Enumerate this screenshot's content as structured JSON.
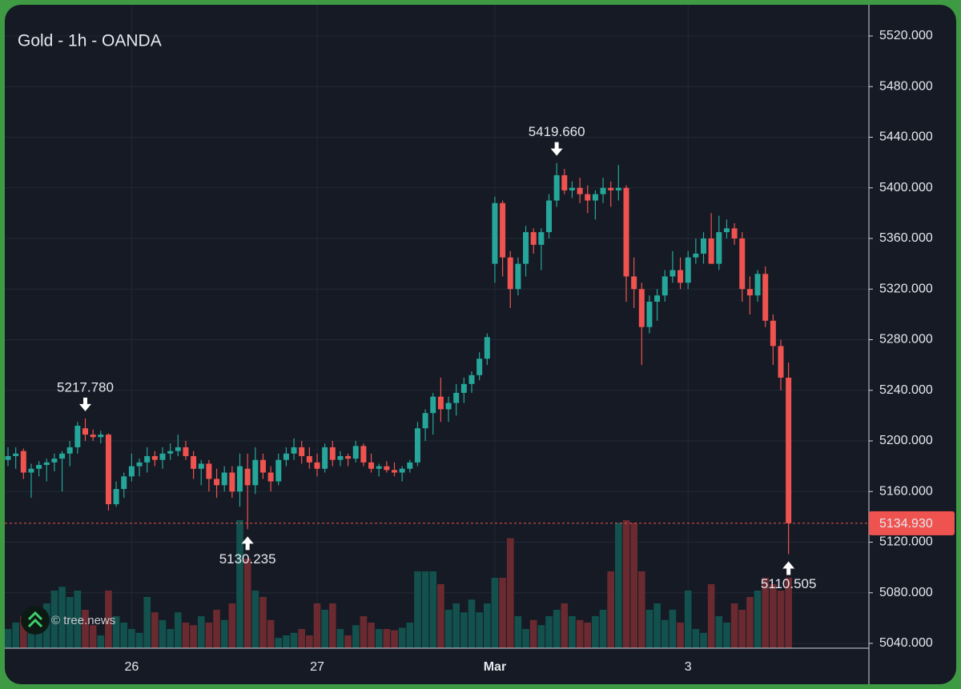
{
  "chart_data": {
    "type": "candlestick",
    "title": "Gold - 1h - OANDA",
    "up_color": "#26a69a",
    "down_color": "#ef5350",
    "volume_up_color": "#12514d",
    "volume_down_color": "#6a2a30",
    "grid": true,
    "ylim": [
      5040,
      5520
    ],
    "yticks": [
      {
        "value": 5040,
        "label": "5040.000"
      },
      {
        "value": 5080,
        "label": "5080.000"
      },
      {
        "value": 5120,
        "label": "5120.000"
      },
      {
        "value": 5160,
        "label": "5160.000"
      },
      {
        "value": 5200,
        "label": "5200.000"
      },
      {
        "value": 5240,
        "label": "5240.000"
      },
      {
        "value": 5280,
        "label": "5280.000"
      },
      {
        "value": 5320,
        "label": "5320.000"
      },
      {
        "value": 5360,
        "label": "5360.000"
      },
      {
        "value": 5400,
        "label": "5400.000"
      },
      {
        "value": 5440,
        "label": "5440.000"
      },
      {
        "value": 5480,
        "label": "5480.000"
      },
      {
        "value": 5520,
        "label": "5520.000"
      }
    ],
    "categories": [
      null,
      null,
      null,
      null,
      null,
      null,
      null,
      null,
      null,
      null,
      null,
      null,
      null,
      null,
      null,
      null,
      "26",
      null,
      null,
      null,
      null,
      null,
      null,
      null,
      null,
      null,
      null,
      null,
      null,
      null,
      null,
      null,
      null,
      null,
      null,
      null,
      null,
      null,
      null,
      null,
      "27",
      null,
      null,
      null,
      null,
      null,
      null,
      null,
      null,
      null,
      null,
      null,
      null,
      null,
      null,
      null,
      null,
      null,
      null,
      null,
      null,
      null,
      null,
      "Mar",
      null,
      null,
      null,
      null,
      null,
      null,
      null,
      null,
      null,
      null,
      null,
      null,
      null,
      null,
      null,
      null,
      null,
      null,
      null,
      null,
      null,
      null,
      null,
      null,
      "3",
      null,
      null,
      null,
      null,
      null,
      null,
      null,
      null,
      null,
      null,
      null,
      null,
      null
    ],
    "open": [
      5185,
      5188,
      5192,
      5175,
      5178,
      5181,
      5183,
      5186,
      5190,
      5195,
      5210,
      5205,
      5203,
      5205,
      5150,
      5162,
      5172,
      5180,
      5183,
      5188,
      5185,
      5190,
      5192,
      5195,
      5188,
      5178,
      5182,
      5170,
      5165,
      5175,
      5160,
      5178,
      5165,
      5185,
      5175,
      5168,
      5185,
      5190,
      5195,
      5188,
      5183,
      5178,
      5195,
      5185,
      5188,
      5186,
      5196,
      5183,
      5178,
      5180,
      5177,
      5175,
      5178,
      5183,
      5210,
      5222,
      5235,
      5225,
      5230,
      5238,
      5245,
      5252,
      5265,
      5340,
      5388,
      5345,
      5320,
      5340,
      5365,
      5355,
      5365,
      5390,
      5410,
      5398,
      5400,
      5395,
      5390,
      5395,
      5400,
      5398,
      5400,
      5330,
      5320,
      5290,
      5310,
      5315,
      5330,
      5335,
      5325,
      5345,
      5348,
      5360,
      5340,
      5365,
      5368,
      5360,
      5320,
      5315,
      5332,
      5295,
      5275,
      5250
    ],
    "high": [
      5195,
      5195,
      5194,
      5182,
      5184,
      5186,
      5190,
      5192,
      5200,
      5215,
      5217.78,
      5209,
      5208,
      5206,
      5168,
      5175,
      5190,
      5186,
      5195,
      5192,
      5195,
      5198,
      5205,
      5200,
      5192,
      5185,
      5185,
      5178,
      5180,
      5180,
      5190,
      5190,
      5195,
      5190,
      5180,
      5190,
      5195,
      5202,
      5200,
      5195,
      5190,
      5198,
      5200,
      5192,
      5190,
      5200,
      5198,
      5190,
      5182,
      5184,
      5183,
      5180,
      5185,
      5215,
      5225,
      5238,
      5250,
      5235,
      5245,
      5250,
      5255,
      5270,
      5285,
      5393,
      5390,
      5350,
      5345,
      5370,
      5368,
      5368,
      5395,
      5419.66,
      5415,
      5405,
      5408,
      5402,
      5398,
      5408,
      5405,
      5418,
      5402,
      5345,
      5325,
      5315,
      5320,
      5335,
      5350,
      5345,
      5350,
      5360,
      5365,
      5380,
      5378,
      5375,
      5372,
      5365,
      5330,
      5335,
      5338,
      5300,
      5280,
      5262
    ],
    "low": [
      5180,
      5178,
      5170,
      5155,
      5172,
      5168,
      5176,
      5160,
      5180,
      5190,
      5200,
      5200,
      5198,
      5145,
      5148,
      5155,
      5168,
      5172,
      5175,
      5180,
      5178,
      5185,
      5188,
      5185,
      5170,
      5165,
      5160,
      5155,
      5160,
      5155,
      5148,
      5130.235,
      5158,
      5170,
      5160,
      5165,
      5180,
      5185,
      5182,
      5178,
      5172,
      5175,
      5180,
      5180,
      5180,
      5183,
      5180,
      5175,
      5172,
      5175,
      5172,
      5168,
      5175,
      5180,
      5200,
      5205,
      5215,
      5215,
      5220,
      5230,
      5238,
      5248,
      5260,
      5325,
      5330,
      5305,
      5315,
      5330,
      5348,
      5335,
      5360,
      5385,
      5395,
      5392,
      5388,
      5380,
      5375,
      5388,
      5385,
      5390,
      5310,
      5305,
      5260,
      5285,
      5295,
      5310,
      5325,
      5320,
      5320,
      5340,
      5340,
      5340,
      5335,
      5360,
      5355,
      5310,
      5300,
      5310,
      5290,
      5260,
      5240,
      5110.505
    ],
    "close": [
      5188,
      5190,
      5175,
      5178,
      5181,
      5183,
      5186,
      5190,
      5195,
      5212,
      5205,
      5203,
      5205,
      5150,
      5162,
      5172,
      5180,
      5183,
      5188,
      5185,
      5190,
      5192,
      5195,
      5188,
      5178,
      5182,
      5170,
      5165,
      5175,
      5160,
      5180,
      5165,
      5185,
      5175,
      5168,
      5185,
      5190,
      5195,
      5188,
      5183,
      5178,
      5195,
      5185,
      5188,
      5186,
      5196,
      5183,
      5178,
      5180,
      5177,
      5175,
      5178,
      5183,
      5210,
      5222,
      5235,
      5225,
      5230,
      5238,
      5245,
      5252,
      5265,
      5282,
      5388,
      5345,
      5320,
      5340,
      5365,
      5355,
      5365,
      5390,
      5410,
      5398,
      5400,
      5395,
      5390,
      5395,
      5400,
      5398,
      5400,
      5330,
      5320,
      5290,
      5310,
      5315,
      5330,
      5335,
      5325,
      5345,
      5348,
      5360,
      5340,
      5365,
      5368,
      5360,
      5320,
      5315,
      5332,
      5295,
      5275,
      5250,
      5134.93
    ],
    "volume": [
      15,
      20,
      25,
      18,
      30,
      35,
      45,
      48,
      40,
      45,
      30,
      18,
      10,
      45,
      25,
      20,
      15,
      12,
      40,
      28,
      22,
      15,
      28,
      20,
      18,
      25,
      20,
      30,
      22,
      35,
      100,
      70,
      45,
      40,
      22,
      8,
      10,
      12,
      15,
      10,
      35,
      30,
      35,
      15,
      10,
      18,
      25,
      20,
      15,
      15,
      14,
      16,
      20,
      60,
      60,
      60,
      50,
      30,
      35,
      28,
      38,
      28,
      35,
      55,
      55,
      86,
      25,
      15,
      22,
      18,
      25,
      30,
      35,
      25,
      22,
      20,
      25,
      30,
      60,
      98,
      100,
      98,
      60,
      30,
      35,
      22,
      30,
      20,
      45,
      15,
      12,
      50,
      25,
      20,
      35,
      30,
      40,
      45,
      55,
      50,
      45,
      55
    ],
    "annotations": [
      {
        "value": 5217.78,
        "label": "5217.780",
        "kind": "high"
      },
      {
        "value": 5130.235,
        "label": "5130.235",
        "kind": "low"
      },
      {
        "value": 5419.66,
        "label": "5419.660",
        "kind": "high"
      },
      {
        "value": 5110.505,
        "label": "5110.505",
        "kind": "low"
      }
    ],
    "last_price": {
      "value": 5134.93,
      "label": "5134.930"
    }
  },
  "watermark": "© tree.news"
}
